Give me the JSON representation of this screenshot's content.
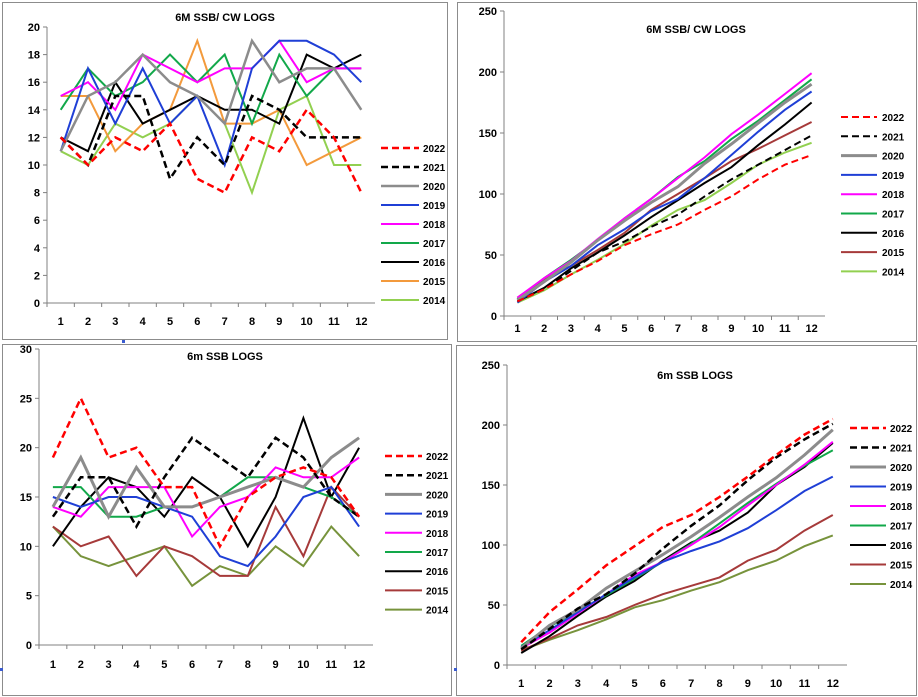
{
  "colors": {
    "2022": "#ff0000",
    "2021": "#000000",
    "2020": "#8c8c8c",
    "2019": "#1f3fd6",
    "2018": "#ff00ff",
    "2017": "#12a84a",
    "2016": "#000000",
    "2015": "#a63a3a",
    "2014_light": "#92d050",
    "2014_dark": "#77933c"
  },
  "chart_data": [
    {
      "id": "tl",
      "type": "line",
      "title": "6M SSB/ CW LOGS",
      "categories": [
        "1",
        "2",
        "3",
        "4",
        "5",
        "6",
        "7",
        "8",
        "9",
        "10",
        "11",
        "12"
      ],
      "ylim": [
        0,
        20
      ],
      "yticks": [
        0,
        2,
        4,
        6,
        8,
        10,
        12,
        14,
        16,
        18,
        20
      ],
      "legend": "right",
      "grid": false,
      "series": [
        {
          "name": "2022",
          "color": "#ff0000",
          "dash": true,
          "width": 2.5,
          "values": [
            12,
            10,
            12,
            11,
            13,
            9,
            8,
            12,
            11,
            14,
            12,
            8
          ]
        },
        {
          "name": "2021",
          "color": "#000000",
          "dash": true,
          "width": 2.5,
          "values": [
            12,
            10,
            15,
            15,
            9,
            12,
            10,
            15,
            14,
            12,
            12,
            12
          ]
        },
        {
          "name": "2020",
          "color": "#8c8c8c",
          "dash": false,
          "width": 2.5,
          "values": [
            11,
            15,
            16,
            18,
            16,
            15,
            13,
            19,
            16,
            17,
            17,
            14
          ]
        },
        {
          "name": "2019",
          "color": "#1f3fd6",
          "dash": false,
          "width": 2,
          "values": [
            11,
            17,
            13,
            17,
            13,
            15,
            10,
            17,
            19,
            19,
            18,
            16
          ]
        },
        {
          "name": "2018",
          "color": "#ff00ff",
          "dash": false,
          "width": 2,
          "values": [
            15,
            16,
            14,
            18,
            17,
            16,
            17,
            17,
            19,
            16,
            17,
            17
          ]
        },
        {
          "name": "2017",
          "color": "#12a84a",
          "dash": false,
          "width": 2,
          "values": [
            14,
            17,
            15,
            16,
            18,
            16,
            18,
            13,
            18,
            15,
            17,
            17
          ]
        },
        {
          "name": "2016",
          "color": "#000000",
          "dash": false,
          "width": 2,
          "values": [
            12,
            11,
            16,
            13,
            14,
            15,
            14,
            14,
            13,
            18,
            17,
            18
          ]
        },
        {
          "name": "2015",
          "color": "#f39a3c",
          "dash": false,
          "width": 2,
          "values": [
            15,
            15,
            11,
            13,
            14,
            19,
            13,
            13,
            14,
            10,
            11,
            12
          ]
        },
        {
          "name": "2014",
          "color": "#92d050",
          "dash": false,
          "width": 2,
          "values": [
            11,
            10,
            13,
            12,
            13,
            15,
            13,
            8,
            14,
            15,
            10,
            10
          ]
        }
      ]
    },
    {
      "id": "tr",
      "type": "line",
      "title": "6M SSB/ CW LOGS",
      "categories": [
        "1",
        "2",
        "3",
        "4",
        "5",
        "6",
        "7",
        "8",
        "9",
        "10",
        "11",
        "12"
      ],
      "ylim": [
        0,
        250
      ],
      "yticks": [
        0,
        50,
        100,
        150,
        200,
        250
      ],
      "legend": "right",
      "grid": false,
      "series": [
        {
          "name": "2022",
          "color": "#ff0000",
          "dash": true,
          "width": 2,
          "values": [
            12,
            22,
            34,
            45,
            58,
            67,
            75,
            87,
            98,
            112,
            124,
            132
          ]
        },
        {
          "name": "2021",
          "color": "#000000",
          "dash": true,
          "width": 2,
          "values": [
            12,
            22,
            37,
            52,
            61,
            73,
            83,
            98,
            112,
            124,
            136,
            148
          ]
        },
        {
          "name": "2020",
          "color": "#8c8c8c",
          "dash": false,
          "width": 3,
          "values": [
            13,
            28,
            44,
            62,
            78,
            93,
            106,
            125,
            141,
            158,
            175,
            190
          ]
        },
        {
          "name": "2019",
          "color": "#1f3fd6",
          "dash": false,
          "width": 2,
          "values": [
            11,
            28,
            41,
            58,
            71,
            86,
            96,
            113,
            132,
            151,
            169,
            184
          ]
        },
        {
          "name": "2018",
          "color": "#ff00ff",
          "dash": false,
          "width": 2,
          "values": [
            15,
            31,
            45,
            63,
            80,
            96,
            113,
            130,
            149,
            165,
            182,
            199
          ]
        },
        {
          "name": "2017",
          "color": "#12a84a",
          "dash": false,
          "width": 2,
          "values": [
            14,
            31,
            46,
            62,
            80,
            96,
            114,
            127,
            145,
            160,
            177,
            194
          ]
        },
        {
          "name": "2016",
          "color": "#000000",
          "dash": false,
          "width": 2,
          "values": [
            12,
            23,
            39,
            52,
            66,
            81,
            95,
            109,
            122,
            140,
            157,
            175
          ]
        },
        {
          "name": "2015",
          "color": "#a63a3a",
          "dash": false,
          "width": 2,
          "values": [
            15,
            30,
            41,
            54,
            68,
            87,
            100,
            113,
            127,
            137,
            148,
            159
          ]
        },
        {
          "name": "2014",
          "color": "#92d050",
          "dash": false,
          "width": 2,
          "values": [
            11,
            21,
            34,
            46,
            59,
            74,
            87,
            95,
            109,
            124,
            134,
            142
          ]
        }
      ]
    },
    {
      "id": "bl",
      "type": "line",
      "title": "6m SSB LOGS",
      "categories": [
        "1",
        "2",
        "3",
        "4",
        "5",
        "6",
        "7",
        "8",
        "9",
        "10",
        "11",
        "12"
      ],
      "ylim": [
        0,
        30
      ],
      "yticks": [
        0,
        5,
        10,
        15,
        20,
        25,
        30
      ],
      "legend": "right",
      "grid": false,
      "series": [
        {
          "name": "2022",
          "color": "#ff0000",
          "dash": true,
          "width": 2.5,
          "values": [
            19,
            25,
            19,
            20,
            16,
            16,
            10,
            15,
            17,
            18,
            17,
            13
          ]
        },
        {
          "name": "2021",
          "color": "#000000",
          "dash": true,
          "width": 2.5,
          "values": [
            13,
            17,
            17,
            12,
            17,
            21,
            19,
            17,
            21,
            19,
            15,
            13
          ]
        },
        {
          "name": "2020",
          "color": "#8c8c8c",
          "dash": false,
          "width": 3,
          "values": [
            14,
            19,
            13,
            18,
            14,
            14,
            15,
            16,
            17,
            16,
            19,
            21
          ]
        },
        {
          "name": "2019",
          "color": "#1f3fd6",
          "dash": false,
          "width": 2,
          "values": [
            15,
            14,
            15,
            15,
            14,
            13,
            9,
            8,
            11,
            15,
            16,
            12
          ]
        },
        {
          "name": "2018",
          "color": "#ff00ff",
          "dash": false,
          "width": 2,
          "values": [
            14,
            13,
            16,
            16,
            16,
            11,
            14,
            15,
            18,
            17,
            17,
            19
          ]
        },
        {
          "name": "2017",
          "color": "#12a84a",
          "dash": false,
          "width": 2,
          "values": [
            16,
            16,
            13,
            13,
            14,
            14,
            15,
            17,
            17,
            16,
            15,
            13
          ]
        },
        {
          "name": "2016",
          "color": "#000000",
          "dash": false,
          "width": 2,
          "values": [
            10,
            14,
            17,
            16,
            13,
            17,
            15,
            10,
            15,
            23,
            15,
            20
          ]
        },
        {
          "name": "2015",
          "color": "#a63a3a",
          "dash": false,
          "width": 2,
          "values": [
            12,
            10,
            11,
            7,
            10,
            9,
            7,
            7,
            14,
            9,
            16,
            13
          ]
        },
        {
          "name": "2014",
          "color": "#77933c",
          "dash": false,
          "width": 2,
          "values": [
            12,
            9,
            8,
            9,
            10,
            6,
            8,
            7,
            10,
            8,
            12,
            9
          ]
        }
      ]
    },
    {
      "id": "br",
      "type": "line",
      "title": "6m SSB LOGS",
      "categories": [
        "1",
        "2",
        "3",
        "4",
        "5",
        "6",
        "7",
        "8",
        "9",
        "10",
        "11",
        "12"
      ],
      "ylim": [
        0,
        250
      ],
      "yticks": [
        0,
        50,
        100,
        150,
        200,
        250
      ],
      "legend": "right",
      "grid": false,
      "series": [
        {
          "name": "2022",
          "color": "#ff0000",
          "dash": true,
          "width": 2.5,
          "values": [
            19,
            44,
            63,
            83,
            99,
            115,
            125,
            140,
            157,
            175,
            192,
            205
          ]
        },
        {
          "name": "2021",
          "color": "#000000",
          "dash": true,
          "width": 2.5,
          "values": [
            13,
            30,
            47,
            59,
            76,
            97,
            116,
            133,
            154,
            173,
            188,
            201
          ]
        },
        {
          "name": "2020",
          "color": "#8c8c8c",
          "dash": false,
          "width": 3,
          "values": [
            14,
            33,
            46,
            64,
            78,
            92,
            107,
            123,
            140,
            156,
            175,
            196
          ]
        },
        {
          "name": "2019",
          "color": "#1f3fd6",
          "dash": false,
          "width": 2,
          "values": [
            15,
            29,
            44,
            59,
            73,
            86,
            95,
            103,
            114,
            129,
            145,
            157
          ]
        },
        {
          "name": "2018",
          "color": "#ff00ff",
          "dash": false,
          "width": 2,
          "values": [
            14,
            27,
            43,
            59,
            75,
            86,
            100,
            115,
            133,
            150,
            167,
            186
          ]
        },
        {
          "name": "2017",
          "color": "#12a84a",
          "dash": false,
          "width": 2,
          "values": [
            16,
            32,
            45,
            58,
            72,
            86,
            101,
            118,
            135,
            151,
            166,
            179
          ]
        },
        {
          "name": "2016",
          "color": "#000000",
          "dash": false,
          "width": 2,
          "values": [
            10,
            24,
            41,
            57,
            70,
            87,
            102,
            112,
            127,
            150,
            165,
            185
          ]
        },
        {
          "name": "2015",
          "color": "#a63a3a",
          "dash": false,
          "width": 2,
          "values": [
            12,
            22,
            33,
            40,
            50,
            59,
            66,
            73,
            87,
            96,
            112,
            125
          ]
        },
        {
          "name": "2014",
          "color": "#77933c",
          "dash": false,
          "width": 2,
          "values": [
            12,
            21,
            29,
            38,
            48,
            54,
            62,
            69,
            79,
            87,
            99,
            108
          ]
        }
      ]
    }
  ]
}
